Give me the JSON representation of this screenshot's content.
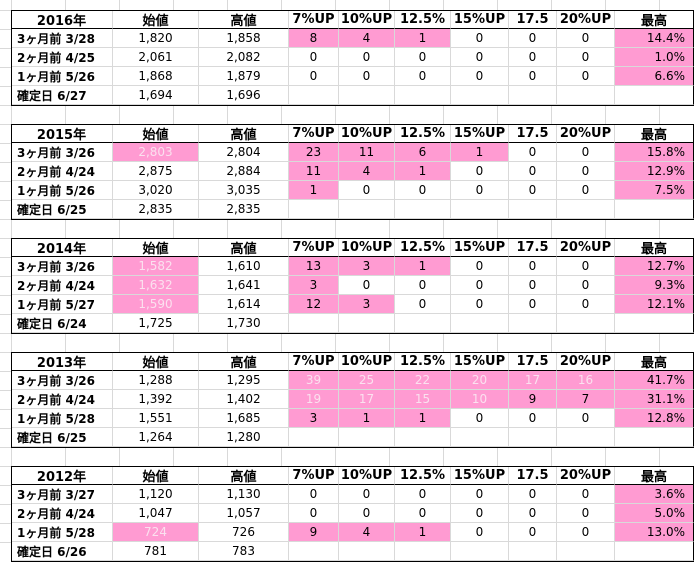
{
  "headers": [
    "始値",
    "高値",
    "7%UP",
    "10%UP",
    "12.5%",
    "15%UP",
    "17.5",
    "20%UP",
    "最高"
  ],
  "blocks": [
    {
      "year": "2016年",
      "rows": [
        {
          "label": "3ヶ月前 3/28",
          "open": "1,820",
          "high": "1,858",
          "p7": "8",
          "p10": "4",
          "p125": "1",
          "p15": "0",
          "p175": "0",
          "p20": "0",
          "max": "14.4%"
        },
        {
          "label": "2ヶ月前 4/25",
          "open": "2,061",
          "high": "2,082",
          "p7": "0",
          "p10": "0",
          "p125": "0",
          "p15": "0",
          "p175": "0",
          "p20": "0",
          "max": "1.0%"
        },
        {
          "label": "1ヶ月前 5/26",
          "open": "1,868",
          "high": "1,879",
          "p7": "0",
          "p10": "0",
          "p125": "0",
          "p15": "0",
          "p175": "0",
          "p20": "0",
          "max": "6.6%"
        },
        {
          "label": "確定日 6/27",
          "open": "1,694",
          "high": "1,696"
        }
      ]
    },
    {
      "year": "2015年",
      "rows": [
        {
          "label": "3ヶ月前 3/26",
          "open": "2,803",
          "high": "2,804",
          "p7": "23",
          "p10": "11",
          "p125": "6",
          "p15": "1",
          "p175": "0",
          "p20": "0",
          "max": "15.8%"
        },
        {
          "label": "2ヶ月前 4/24",
          "open": "2,875",
          "high": "2,884",
          "p7": "11",
          "p10": "4",
          "p125": "1",
          "p15": "0",
          "p175": "0",
          "p20": "0",
          "max": "12.9%"
        },
        {
          "label": "1ヶ月前 5/26",
          "open": "3,020",
          "high": "3,035",
          "p7": "1",
          "p10": "0",
          "p125": "0",
          "p15": "0",
          "p175": "0",
          "p20": "0",
          "max": "7.5%"
        },
        {
          "label": "確定日 6/25",
          "open": "2,835",
          "high": "2,835"
        }
      ]
    },
    {
      "year": "2014年",
      "rows": [
        {
          "label": "3ヶ月前 3/26",
          "open": "1,582",
          "high": "1,610",
          "p7": "13",
          "p10": "3",
          "p125": "1",
          "p15": "0",
          "p175": "0",
          "p20": "0",
          "max": "12.7%"
        },
        {
          "label": "2ヶ月前 4/24",
          "open": "1,632",
          "high": "1,641",
          "p7": "3",
          "p10": "0",
          "p125": "0",
          "p15": "0",
          "p175": "0",
          "p20": "0",
          "max": "9.3%"
        },
        {
          "label": "1ヶ月前 5/27",
          "open": "1,590",
          "high": "1,614",
          "p7": "12",
          "p10": "3",
          "p125": "0",
          "p15": "0",
          "p175": "0",
          "p20": "0",
          "max": "12.1%"
        },
        {
          "label": "確定日 6/24",
          "open": "1,725",
          "high": "1,730"
        }
      ]
    },
    {
      "year": "2013年",
      "rows": [
        {
          "label": "3ヶ月前 3/26",
          "open": "1,288",
          "high": "1,295",
          "p7": "39",
          "p10": "25",
          "p125": "22",
          "p15": "20",
          "p175": "17",
          "p20": "16",
          "max": "41.7%"
        },
        {
          "label": "2ヶ月前 4/24",
          "open": "1,392",
          "high": "1,402",
          "p7": "19",
          "p10": "17",
          "p125": "15",
          "p15": "10",
          "p175": "9",
          "p20": "7",
          "max": "31.1%"
        },
        {
          "label": "1ヶ月前 5/28",
          "open": "1,551",
          "high": "1,685",
          "p7": "3",
          "p10": "1",
          "p125": "1",
          "p15": "0",
          "p175": "0",
          "p20": "0",
          "max": "12.8%"
        },
        {
          "label": "確定日 6/25",
          "open": "1,264",
          "high": "1,280"
        }
      ]
    },
    {
      "year": "2012年",
      "rows": [
        {
          "label": "3ヶ月前 3/27",
          "open": "1,120",
          "high": "1,130",
          "p7": "0",
          "p10": "0",
          "p125": "0",
          "p15": "0",
          "p175": "0",
          "p20": "0",
          "max": "3.6%"
        },
        {
          "label": "2ヶ月前 4/24",
          "open": "1,047",
          "high": "1,057",
          "p7": "0",
          "p10": "0",
          "p125": "0",
          "p15": "0",
          "p175": "0",
          "p20": "0",
          "max": "5.0%"
        },
        {
          "label": "1ヶ月前 5/28",
          "open": "724",
          "high": "726",
          "p7": "9",
          "p10": "4",
          "p125": "1",
          "p15": "0",
          "p175": "0",
          "p20": "0",
          "max": "13.0%"
        },
        {
          "label": "確定日 6/26",
          "open": "781",
          "high": "783"
        }
      ]
    }
  ],
  "colors": {
    "highlight": "#ff9bd2",
    "highlight_text_light": "#fbe1ef",
    "grid": "#d9d9d9"
  }
}
